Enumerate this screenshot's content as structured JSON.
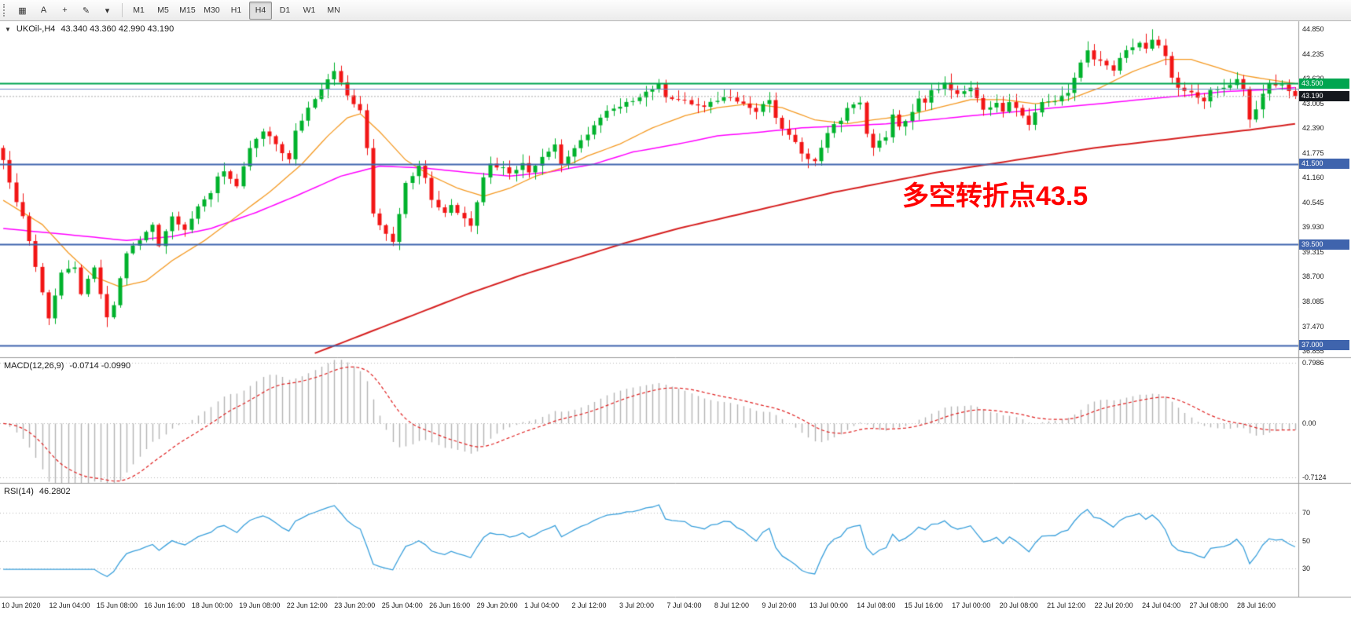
{
  "toolbar": {
    "tools": [
      {
        "name": "charts-grid-icon",
        "glyph": "▦"
      },
      {
        "name": "text-annotation-tool",
        "glyph": "A"
      },
      {
        "name": "crosshair-icon",
        "glyph": "+"
      },
      {
        "name": "draw-tools-icon",
        "glyph": "✎"
      },
      {
        "name": "dropdown-arrow-icon",
        "glyph": "▾"
      }
    ],
    "timeframes": [
      "M1",
      "M5",
      "M15",
      "M30",
      "H1",
      "H4",
      "D1",
      "W1",
      "MN"
    ],
    "active_timeframe": "H4"
  },
  "chart_data": {
    "type": "candlestick",
    "symbol": "UKOil-,H4",
    "ohlc_text": "43.340 43.360 42.990 43.190",
    "collapse_arrow": "▼",
    "bars": 200,
    "price_range": [
      36.7,
      45.05
    ],
    "colors": {
      "up": "#00b22c",
      "down": "#f21515",
      "ma_fast": "#f59a23",
      "ma_mid": "#ff00ff",
      "ma_slow": "#d62020",
      "level_blue": "#3f64ad",
      "level_green": "#00a550",
      "bid_badge": "#15181d",
      "macd_hist": "#b4b4b4",
      "macd_signal": "#e02020",
      "rsi_line": "#3aa0dc"
    },
    "price_path": [
      [
        0,
        41.65
      ],
      [
        1,
        41.0
      ],
      [
        3,
        40.2
      ],
      [
        4,
        39.6
      ],
      [
        6,
        38.3
      ],
      [
        7,
        37.7
      ],
      [
        9,
        38.8
      ],
      [
        11,
        38.9
      ],
      [
        12,
        38.3
      ],
      [
        14,
        38.9
      ],
      [
        16,
        37.65
      ],
      [
        17,
        38.0
      ],
      [
        19,
        39.3
      ],
      [
        21,
        39.6
      ],
      [
        23,
        40.0
      ],
      [
        24,
        39.5
      ],
      [
        26,
        40.2
      ],
      [
        28,
        39.9
      ],
      [
        30,
        40.4
      ],
      [
        32,
        40.8
      ],
      [
        33,
        41.2
      ],
      [
        34,
        41.35
      ],
      [
        36,
        40.9
      ],
      [
        38,
        41.9
      ],
      [
        40,
        42.3
      ],
      [
        42,
        42.0
      ],
      [
        44,
        41.6
      ],
      [
        45,
        42.3
      ],
      [
        47,
        42.9
      ],
      [
        49,
        43.4
      ],
      [
        51,
        43.85
      ],
      [
        52,
        43.5
      ],
      [
        53,
        43.2
      ],
      [
        55,
        42.8
      ],
      [
        56,
        41.9
      ],
      [
        57,
        40.3
      ],
      [
        58,
        40.0
      ],
      [
        60,
        39.6
      ],
      [
        61,
        40.3
      ],
      [
        62,
        41.0
      ],
      [
        64,
        41.5
      ],
      [
        65,
        41.2
      ],
      [
        66,
        40.6
      ],
      [
        68,
        40.3
      ],
      [
        69,
        40.5
      ],
      [
        70,
        40.3
      ],
      [
        72,
        40.0
      ],
      [
        74,
        41.2
      ],
      [
        75,
        41.5
      ],
      [
        77,
        41.4
      ],
      [
        78,
        41.3
      ],
      [
        80,
        41.5
      ],
      [
        81,
        41.3
      ],
      [
        83,
        41.7
      ],
      [
        85,
        42.0
      ],
      [
        86,
        41.5
      ],
      [
        88,
        41.9
      ],
      [
        90,
        42.2
      ],
      [
        91,
        42.5
      ],
      [
        93,
        42.8
      ],
      [
        95,
        42.9
      ],
      [
        97,
        43.1
      ],
      [
        99,
        43.3
      ],
      [
        101,
        43.45
      ],
      [
        102,
        43.2
      ],
      [
        104,
        43.1
      ],
      [
        106,
        43.0
      ],
      [
        108,
        42.9
      ],
      [
        110,
        43.1
      ],
      [
        112,
        43.2
      ],
      [
        114,
        43.0
      ],
      [
        116,
        42.8
      ],
      [
        118,
        43.1
      ],
      [
        119,
        42.6
      ],
      [
        121,
        42.2
      ],
      [
        123,
        41.8
      ],
      [
        125,
        41.55
      ],
      [
        127,
        42.3
      ],
      [
        129,
        42.6
      ],
      [
        130,
        42.9
      ],
      [
        132,
        43.0
      ],
      [
        133,
        42.3
      ],
      [
        134,
        41.9
      ],
      [
        136,
        42.2
      ],
      [
        137,
        42.7
      ],
      [
        138,
        42.4
      ],
      [
        140,
        42.8
      ],
      [
        141,
        43.1
      ],
      [
        142,
        43.0
      ],
      [
        143,
        43.3
      ],
      [
        145,
        43.5
      ],
      [
        146,
        43.3
      ],
      [
        147,
        43.2
      ],
      [
        149,
        43.4
      ],
      [
        150,
        43.1
      ],
      [
        151,
        42.9
      ],
      [
        153,
        43.0
      ],
      [
        154,
        42.8
      ],
      [
        155,
        43.0
      ],
      [
        157,
        42.7
      ],
      [
        158,
        42.5
      ],
      [
        159,
        42.8
      ],
      [
        160,
        43.0
      ],
      [
        162,
        43.1
      ],
      [
        163,
        43.2
      ],
      [
        164,
        43.3
      ],
      [
        166,
        44.0
      ],
      [
        167,
        44.3
      ],
      [
        168,
        44.1
      ],
      [
        170,
        44.0
      ],
      [
        171,
        43.8
      ],
      [
        172,
        44.1
      ],
      [
        173,
        44.3
      ],
      [
        175,
        44.5
      ],
      [
        176,
        44.4
      ],
      [
        177,
        44.6
      ],
      [
        179,
        44.2
      ],
      [
        180,
        43.6
      ],
      [
        181,
        43.4
      ],
      [
        182,
        43.3
      ],
      [
        184,
        43.2
      ],
      [
        185,
        43.1
      ],
      [
        186,
        43.3
      ],
      [
        188,
        43.4
      ],
      [
        189,
        43.5
      ],
      [
        190,
        43.6
      ],
      [
        191,
        43.4
      ],
      [
        192,
        42.6
      ],
      [
        194,
        43.2
      ],
      [
        195,
        43.5
      ],
      [
        197,
        43.45
      ],
      [
        198,
        43.35
      ],
      [
        199,
        43.19
      ]
    ],
    "wick_extremes": [
      {
        "bar": 7,
        "low": 37.5
      },
      {
        "bar": 16,
        "low": 37.45
      },
      {
        "bar": 51,
        "high": 43.95
      },
      {
        "bar": 60,
        "low": 39.5
      },
      {
        "bar": 125,
        "low": 41.45
      },
      {
        "bar": 145,
        "high": 43.68
      },
      {
        "bar": 177,
        "high": 44.85
      },
      {
        "bar": 192,
        "low": 42.4
      }
    ],
    "moving_averages": {
      "fast": [
        [
          0,
          40.6
        ],
        [
          6,
          40.0
        ],
        [
          10,
          39.3
        ],
        [
          14,
          38.7
        ],
        [
          18,
          38.45
        ],
        [
          22,
          38.6
        ],
        [
          26,
          39.1
        ],
        [
          31,
          39.6
        ],
        [
          36,
          40.2
        ],
        [
          41,
          40.8
        ],
        [
          46,
          41.5
        ],
        [
          50,
          42.2
        ],
        [
          53,
          42.65
        ],
        [
          55,
          42.75
        ],
        [
          58,
          42.3
        ],
        [
          62,
          41.6
        ],
        [
          66,
          41.2
        ],
        [
          70,
          40.9
        ],
        [
          74,
          40.7
        ],
        [
          78,
          40.9
        ],
        [
          82,
          41.2
        ],
        [
          86,
          41.4
        ],
        [
          90,
          41.7
        ],
        [
          95,
          42.0
        ],
        [
          100,
          42.4
        ],
        [
          105,
          42.7
        ],
        [
          110,
          42.9
        ],
        [
          115,
          43.0
        ],
        [
          120,
          42.9
        ],
        [
          125,
          42.6
        ],
        [
          130,
          42.5
        ],
        [
          134,
          42.6
        ],
        [
          139,
          42.7
        ],
        [
          144,
          42.9
        ],
        [
          149,
          43.1
        ],
        [
          154,
          43.1
        ],
        [
          159,
          43.0
        ],
        [
          164,
          43.1
        ],
        [
          169,
          43.4
        ],
        [
          174,
          43.8
        ],
        [
          179,
          44.1
        ],
        [
          183,
          44.1
        ],
        [
          187,
          43.9
        ],
        [
          191,
          43.7
        ],
        [
          195,
          43.6
        ],
        [
          199,
          43.5
        ]
      ],
      "mid": [
        [
          0,
          39.9
        ],
        [
          13,
          39.7
        ],
        [
          19,
          39.6
        ],
        [
          26,
          39.7
        ],
        [
          32,
          39.9
        ],
        [
          39,
          40.3
        ],
        [
          45,
          40.7
        ],
        [
          52,
          41.2
        ],
        [
          58,
          41.45
        ],
        [
          65,
          41.4
        ],
        [
          71,
          41.3
        ],
        [
          78,
          41.2
        ],
        [
          84,
          41.3
        ],
        [
          91,
          41.5
        ],
        [
          97,
          41.8
        ],
        [
          104,
          42.0
        ],
        [
          110,
          42.2
        ],
        [
          117,
          42.3
        ],
        [
          123,
          42.4
        ],
        [
          130,
          42.45
        ],
        [
          136,
          42.5
        ],
        [
          143,
          42.6
        ],
        [
          149,
          42.7
        ],
        [
          156,
          42.8
        ],
        [
          162,
          42.9
        ],
        [
          169,
          43.0
        ],
        [
          175,
          43.1
        ],
        [
          182,
          43.2
        ],
        [
          188,
          43.3
        ],
        [
          195,
          43.35
        ],
        [
          199,
          43.4
        ]
      ],
      "slow": [
        [
          48,
          36.8
        ],
        [
          56,
          37.3
        ],
        [
          64,
          37.8
        ],
        [
          72,
          38.3
        ],
        [
          80,
          38.75
        ],
        [
          88,
          39.15
        ],
        [
          96,
          39.55
        ],
        [
          104,
          39.9
        ],
        [
          112,
          40.2
        ],
        [
          120,
          40.5
        ],
        [
          128,
          40.8
        ],
        [
          136,
          41.05
        ],
        [
          144,
          41.3
        ],
        [
          152,
          41.5
        ],
        [
          160,
          41.7
        ],
        [
          168,
          41.9
        ],
        [
          176,
          42.05
        ],
        [
          184,
          42.2
        ],
        [
          192,
          42.35
        ],
        [
          199,
          42.5
        ]
      ]
    },
    "levels": [
      {
        "price": 43.5,
        "color": "#00a550",
        "badge": "43.500",
        "width": 2
      },
      {
        "price": 43.38,
        "color": "#6b88c4",
        "badge": null,
        "width": 1
      },
      {
        "price": 41.5,
        "color": "#3f64ad",
        "badge": "41.500",
        "width": 2
      },
      {
        "price": 39.5,
        "color": "#3f64ad",
        "badge": "39.500",
        "width": 2
      },
      {
        "price": 37.0,
        "color": "#3f64ad",
        "badge": "37.000",
        "width": 2
      }
    ],
    "bid": {
      "price": 43.19,
      "badge": "43.190"
    },
    "price_scale_labels": [
      44.85,
      44.235,
      43.62,
      43.005,
      42.39,
      41.775,
      41.16,
      40.545,
      39.93,
      39.315,
      38.7,
      38.085,
      37.47,
      36.855
    ],
    "time_labels": [
      "10 Jun 2020",
      "12 Jun 04:00",
      "15 Jun 08:00",
      "16 Jun 16:00",
      "18 Jun 00:00",
      "19 Jun 08:00",
      "22 Jun 12:00",
      "23 Jun 20:00",
      "25 Jun 04:00",
      "26 Jun 16:00",
      "29 Jun 20:00",
      "1 Jul 04:00",
      "2 Jul 12:00",
      "3 Jul 20:00",
      "7 Jul 04:00",
      "8 Jul 12:00",
      "9 Jul 20:00",
      "13 Jul 00:00",
      "14 Jul 08:00",
      "15 Jul 16:00",
      "17 Jul 00:00",
      "20 Jul 08:00",
      "21 Jul 12:00",
      "22 Jul 20:00",
      "24 Jul 04:00",
      "27 Jul 08:00",
      "28 Jul 16:00"
    ],
    "annotation": {
      "text": "多空转折点43.5",
      "color": "#ff0000"
    },
    "macd": {
      "name": "MACD(12,26,9)",
      "values_text": "-0.0714 -0.0990",
      "fast": 12,
      "slow": 26,
      "signal": 9,
      "current": [
        -0.0714,
        -0.099
      ],
      "scale": {
        "max": 0.85,
        "min": -0.78,
        "labels": [
          {
            "v": 0.7986,
            "text": "0.7986"
          },
          {
            "v": 0,
            "text": "0.00"
          },
          {
            "v": -0.7124,
            "text": "-0.7124"
          }
        ]
      }
    },
    "rsi": {
      "name": "RSI(14)",
      "value_text": "46.2802",
      "period": 14,
      "current": 46.2802,
      "levels": [
        70,
        50,
        30
      ],
      "range": [
        10,
        90
      ]
    }
  }
}
